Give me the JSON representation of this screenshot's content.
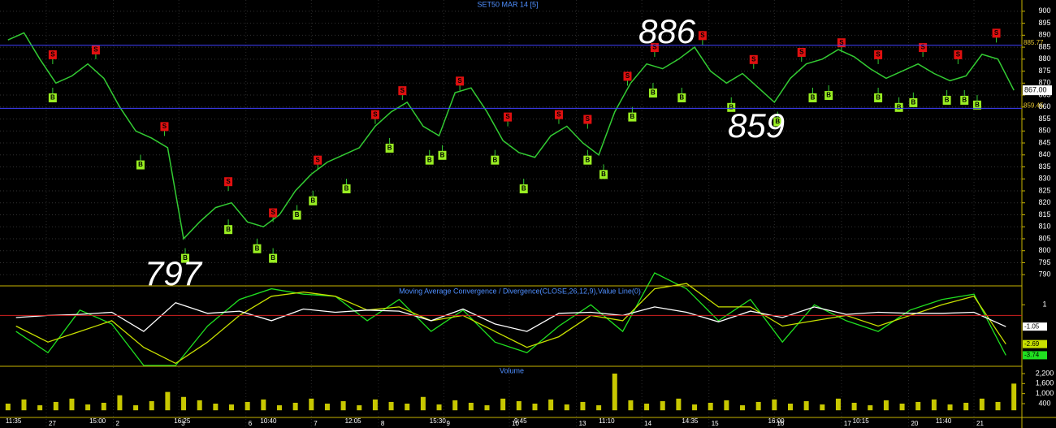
{
  "chart_data": [
    {
      "type": "line",
      "title": "SET50 MAR 14  [5]",
      "color": "#33cc33",
      "values": [
        888,
        891,
        880,
        870,
        873,
        878,
        872,
        860,
        850,
        847,
        843,
        805,
        812,
        818,
        820,
        812,
        810,
        815,
        825,
        832,
        837,
        840,
        843,
        852,
        858,
        862,
        852,
        848,
        866,
        868,
        858,
        846,
        841,
        839,
        848,
        852,
        845,
        840,
        858,
        870,
        878,
        876,
        880,
        885,
        875,
        870,
        874,
        868,
        862,
        872,
        878,
        880,
        884,
        881,
        876,
        872,
        875,
        878,
        874,
        871,
        873,
        882,
        880,
        867
      ],
      "xlim": [
        -0.5,
        63.5
      ],
      "ylim": [
        786,
        903
      ],
      "yticks": [
        790,
        795,
        800,
        805,
        810,
        815,
        820,
        825,
        830,
        835,
        840,
        845,
        850,
        855,
        860,
        865,
        870,
        875,
        880,
        885,
        890,
        895,
        900
      ],
      "xticks": [
        {
          "value": -0.25,
          "label": "11:35"
        },
        {
          "value": 5.0,
          "label": "15:00"
        },
        {
          "value": 10.3,
          "label": "16:25"
        },
        {
          "value": 15.7,
          "label": "10:40"
        },
        {
          "value": 21.0,
          "label": "12:05"
        },
        {
          "value": 26.3,
          "label": "15:30"
        },
        {
          "value": 31.6,
          "label": "9:45"
        },
        {
          "value": 36.9,
          "label": "11:10"
        },
        {
          "value": 42.1,
          "label": "14:35"
        },
        {
          "value": 47.5,
          "label": "16:00"
        },
        {
          "value": 52.8,
          "label": "10:15"
        },
        {
          "value": 58.0,
          "label": "11:40"
        }
      ],
      "dayticks": [
        {
          "value": 2.4,
          "label": "27"
        },
        {
          "value": 6.6,
          "label": "2"
        },
        {
          "value": 10.7,
          "label": "3"
        },
        {
          "value": 14.9,
          "label": "6"
        },
        {
          "value": 19.0,
          "label": "7"
        },
        {
          "value": 23.2,
          "label": "8"
        },
        {
          "value": 27.3,
          "label": "9"
        },
        {
          "value": 31.4,
          "label": "10"
        },
        {
          "value": 35.6,
          "label": "13"
        },
        {
          "value": 39.7,
          "label": "14"
        },
        {
          "value": 43.9,
          "label": "15"
        },
        {
          "value": 48.0,
          "label": "16"
        },
        {
          "value": 52.2,
          "label": "17"
        },
        {
          "value": 56.4,
          "label": "20"
        },
        {
          "value": 60.5,
          "label": "21"
        }
      ],
      "grid": true,
      "levels": [
        885.77,
        859.45
      ],
      "level_color": "#4040ff",
      "last_label": {
        "value": 867,
        "label": "867.00"
      },
      "sell_label": "S",
      "sell_color": "#e01010",
      "sells": [
        {
          "x": 2.8,
          "value": 882
        },
        {
          "x": 5.5,
          "value": 884
        },
        {
          "x": 9.8,
          "value": 852
        },
        {
          "x": 13.8,
          "value": 829
        },
        {
          "x": 16.6,
          "value": 816
        },
        {
          "x": 19.4,
          "value": 838
        },
        {
          "x": 23.0,
          "value": 857
        },
        {
          "x": 24.7,
          "value": 867
        },
        {
          "x": 28.3,
          "value": 871
        },
        {
          "x": 31.3,
          "value": 856
        },
        {
          "x": 34.5,
          "value": 857
        },
        {
          "x": 36.3,
          "value": 855
        },
        {
          "x": 38.8,
          "value": 873
        },
        {
          "x": 40.5,
          "value": 885
        },
        {
          "x": 43.5,
          "value": 890
        },
        {
          "x": 46.7,
          "value": 880
        },
        {
          "x": 49.7,
          "value": 883
        },
        {
          "x": 52.2,
          "value": 887
        },
        {
          "x": 54.5,
          "value": 882
        },
        {
          "x": 57.3,
          "value": 885
        },
        {
          "x": 59.5,
          "value": 882
        },
        {
          "x": 61.9,
          "value": 891
        }
      ],
      "buy_label": "B",
      "buy_color": "#99ee22",
      "buys": [
        {
          "x": 2.8,
          "value": 864
        },
        {
          "x": 8.3,
          "value": 836
        },
        {
          "x": 11.1,
          "value": 797
        },
        {
          "x": 13.8,
          "value": 809
        },
        {
          "x": 15.6,
          "value": 801
        },
        {
          "x": 16.6,
          "value": 797
        },
        {
          "x": 18.1,
          "value": 815
        },
        {
          "x": 19.1,
          "value": 821
        },
        {
          "x": 21.2,
          "value": 826
        },
        {
          "x": 23.9,
          "value": 843
        },
        {
          "x": 26.4,
          "value": 838
        },
        {
          "x": 27.2,
          "value": 840
        },
        {
          "x": 30.5,
          "value": 838
        },
        {
          "x": 32.3,
          "value": 826
        },
        {
          "x": 36.3,
          "value": 838
        },
        {
          "x": 37.3,
          "value": 832
        },
        {
          "x": 39.1,
          "value": 856
        },
        {
          "x": 40.4,
          "value": 866
        },
        {
          "x": 42.2,
          "value": 864
        },
        {
          "x": 45.3,
          "value": 860
        },
        {
          "x": 48.2,
          "value": 854
        },
        {
          "x": 50.4,
          "value": 864
        },
        {
          "x": 51.4,
          "value": 865
        },
        {
          "x": 54.5,
          "value": 864
        },
        {
          "x": 55.8,
          "value": 860
        },
        {
          "x": 56.7,
          "value": 862
        },
        {
          "x": 58.8,
          "value": 863
        },
        {
          "x": 59.9,
          "value": 863
        },
        {
          "x": 60.7,
          "value": 861
        }
      ],
      "annotations": [
        "886",
        "859",
        "797"
      ]
    },
    {
      "type": "line",
      "title": "Moving Average Convergence / Divergence(CLOSE,26,12,9),Value Line(0)",
      "ylim": [
        -4.7,
        2.7
      ],
      "yticks": [
        1
      ],
      "value_line": 0,
      "value_line_color": "#d02020",
      "series": [
        {
          "color": "#20e020",
          "values": [
            -1.5,
            -3.5,
            0.5,
            -0.8,
            -4.7,
            -4.7,
            -1.0,
            1.5,
            2.5,
            2.0,
            1.8,
            -0.5,
            1.5,
            -1.5,
            0.5,
            -2.5,
            -3.5,
            -1.0,
            1.0,
            -1.5,
            4.0,
            2.5,
            -0.5,
            1.5,
            -2.5,
            1.0,
            -0.5,
            -1.5,
            0.5,
            1.5,
            2.0,
            -3.74
          ]
        },
        {
          "color": "#c8e000",
          "values": [
            -1.0,
            -2.5,
            -1.5,
            -0.5,
            -3.0,
            -4.5,
            -2.5,
            0.0,
            1.8,
            2.2,
            1.8,
            0.5,
            0.8,
            -0.5,
            0.0,
            -1.5,
            -3.0,
            -2.0,
            0.0,
            -0.5,
            2.5,
            3.0,
            0.8,
            0.8,
            -1.0,
            -0.5,
            0.0,
            -1.0,
            0.0,
            1.0,
            1.8,
            -2.69
          ]
        },
        {
          "color": "#ffffff",
          "values": [
            -0.2,
            0.0,
            0.1,
            0.3,
            -1.5,
            1.2,
            0.2,
            0.4,
            -0.5,
            0.6,
            0.3,
            0.5,
            0.4,
            -0.5,
            0.6,
            -0.8,
            -1.5,
            0.2,
            0.3,
            0.0,
            0.8,
            0.3,
            -0.6,
            0.4,
            -0.2,
            0.8,
            0.1,
            0.3,
            0.2,
            0.2,
            0.3,
            -1.05
          ]
        }
      ]
    },
    {
      "type": "bar",
      "title": "Volume",
      "color": "#c8c800",
      "values": [
        400,
        650,
        300,
        500,
        700,
        350,
        450,
        900,
        300,
        550,
        1100,
        800,
        600,
        400,
        350,
        500,
        650,
        300,
        450,
        700,
        400,
        550,
        300,
        650,
        500,
        400,
        800,
        350,
        600,
        450,
        300,
        700,
        550,
        400,
        650,
        350,
        500,
        300,
        2200,
        600,
        400,
        550,
        700,
        350,
        450,
        600,
        300,
        500,
        650,
        400,
        550,
        350,
        700,
        450,
        300,
        600,
        400,
        500,
        650,
        350,
        450,
        700,
        500,
        1600
      ],
      "ylim": [
        -380,
        2590
      ],
      "yticks": [
        400,
        {
          "value": 1000,
          "label": "1,000"
        },
        {
          "value": 1600,
          "label": "1,600"
        },
        {
          "value": 2200,
          "label": "2,200"
        }
      ]
    }
  ]
}
